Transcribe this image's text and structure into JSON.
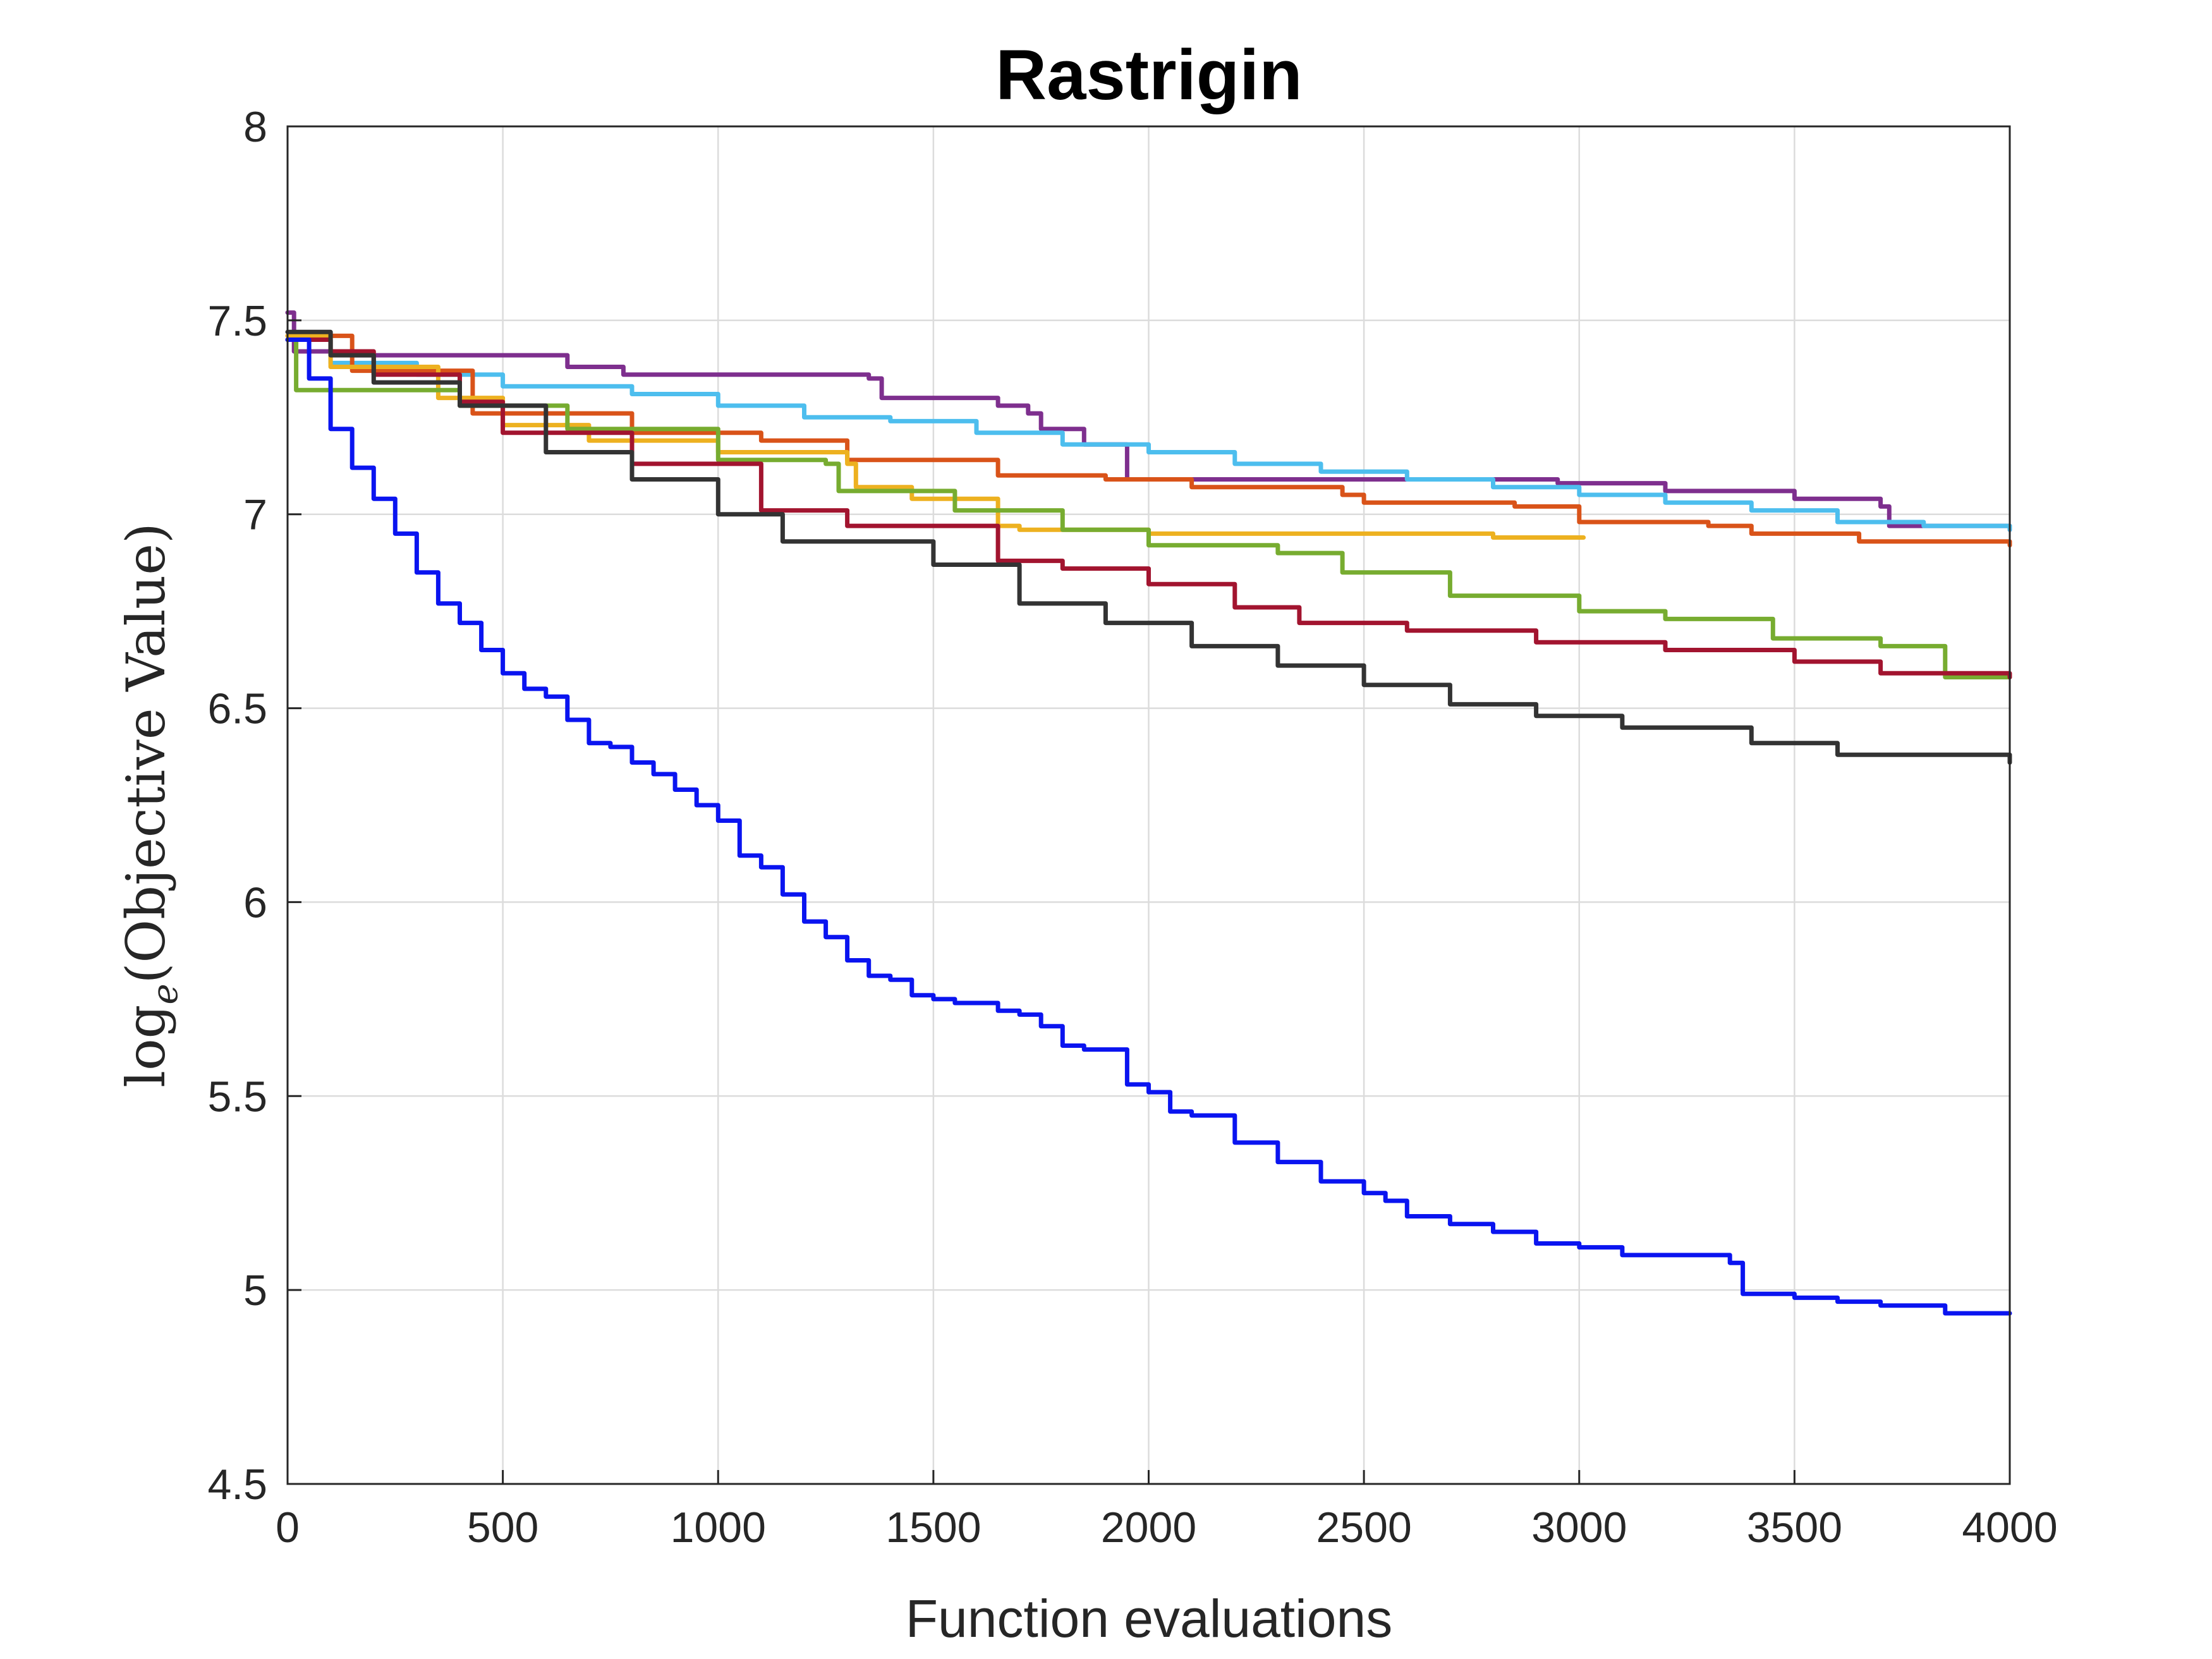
{
  "chart_data": {
    "type": "line",
    "title": "Rastrigin",
    "xlabel": "Function evaluations",
    "ylabel": {
      "prefix": "log",
      "subscript": "e",
      "text": "(Objective Value)"
    },
    "xlim": [
      0,
      4000
    ],
    "ylim": [
      4.5,
      8
    ],
    "xticks": [
      0,
      500,
      1000,
      1500,
      2000,
      2500,
      3000,
      3500,
      4000
    ],
    "yticks": [
      4.5,
      5,
      5.5,
      6,
      6.5,
      7,
      7.5,
      8
    ],
    "xtick_labels": [
      "0",
      "500",
      "1000",
      "1500",
      "2000",
      "2500",
      "3000",
      "3500",
      "4000"
    ],
    "ytick_labels": [
      "4.5",
      "5",
      "5.5",
      "6",
      "6.5",
      "7",
      "7.5",
      "8"
    ],
    "grid": true,
    "series": [
      {
        "color": "#7e2f8e",
        "x": [
          0,
          15,
          150,
          650,
          780,
          1350,
          1380,
          1650,
          1720,
          1750,
          1850,
          1950,
          2600,
          2950,
          3200,
          3500,
          3700,
          3720,
          4000
        ],
        "y": [
          7.52,
          7.42,
          7.41,
          7.38,
          7.36,
          7.35,
          7.3,
          7.28,
          7.26,
          7.22,
          7.18,
          7.09,
          7.09,
          7.08,
          7.06,
          7.04,
          7.02,
          6.97,
          6.96
        ]
      },
      {
        "color": "#4dbeee",
        "x": [
          0,
          100,
          300,
          500,
          800,
          1000,
          1200,
          1400,
          1600,
          1800,
          2000,
          2200,
          2400,
          2600,
          2800,
          3000,
          3200,
          3400,
          3600,
          3800,
          4000
        ],
        "y": [
          7.45,
          7.39,
          7.36,
          7.33,
          7.31,
          7.28,
          7.25,
          7.24,
          7.21,
          7.18,
          7.16,
          7.13,
          7.11,
          7.09,
          7.07,
          7.05,
          7.03,
          7.01,
          6.98,
          6.97,
          6.96
        ]
      },
      {
        "color": "#d95319",
        "x": [
          0,
          150,
          430,
          800,
          1100,
          1300,
          1650,
          1900,
          2100,
          2450,
          2500,
          2850,
          3000,
          3300,
          3400,
          3650,
          4000
        ],
        "y": [
          7.46,
          7.37,
          7.26,
          7.21,
          7.19,
          7.14,
          7.1,
          7.09,
          7.07,
          7.05,
          7.03,
          7.02,
          6.98,
          6.97,
          6.95,
          6.93,
          6.92
        ]
      },
      {
        "color": "#edb120",
        "x": [
          0,
          100,
          350,
          500,
          700,
          1000,
          1300,
          1320,
          1450,
          1650,
          1700,
          2000,
          2400,
          2800,
          3010
        ],
        "y": [
          7.46,
          7.38,
          7.3,
          7.23,
          7.19,
          7.16,
          7.13,
          7.07,
          7.04,
          6.97,
          6.96,
          6.95,
          6.95,
          6.94,
          6.94
        ]
      },
      {
        "color": "#77ac30",
        "x": [
          0,
          20,
          200,
          400,
          650,
          1000,
          1250,
          1280,
          1550,
          1800,
          2000,
          2300,
          2450,
          2700,
          3000,
          3200,
          3450,
          3700,
          3850,
          4000
        ],
        "y": [
          7.45,
          7.32,
          7.32,
          7.28,
          7.22,
          7.14,
          7.13,
          7.06,
          7.01,
          6.96,
          6.92,
          6.9,
          6.85,
          6.79,
          6.75,
          6.73,
          6.68,
          6.66,
          6.58,
          6.58
        ]
      },
      {
        "color": "#a2142f",
        "x": [
          0,
          100,
          200,
          400,
          500,
          800,
          1100,
          1300,
          1650,
          1800,
          2000,
          2200,
          2350,
          2600,
          2900,
          3200,
          3500,
          3700,
          4000
        ],
        "y": [
          7.45,
          7.42,
          7.36,
          7.29,
          7.21,
          7.13,
          7.01,
          6.97,
          6.88,
          6.86,
          6.82,
          6.76,
          6.72,
          6.7,
          6.67,
          6.65,
          6.62,
          6.59,
          6.58
        ]
      },
      {
        "color": "#333333",
        "x": [
          0,
          100,
          200,
          400,
          600,
          800,
          1000,
          1150,
          1500,
          1700,
          1900,
          2100,
          2300,
          2500,
          2700,
          2900,
          3100,
          3400,
          3600,
          4000
        ],
        "y": [
          7.47,
          7.41,
          7.34,
          7.28,
          7.16,
          7.09,
          7.0,
          6.93,
          6.87,
          6.77,
          6.72,
          6.66,
          6.61,
          6.56,
          6.51,
          6.48,
          6.45,
          6.41,
          6.38,
          6.36
        ]
      },
      {
        "color": "#0a14f0",
        "x": [
          0,
          50,
          100,
          150,
          200,
          250,
          300,
          350,
          400,
          450,
          500,
          550,
          600,
          650,
          700,
          750,
          800,
          850,
          900,
          950,
          1000,
          1050,
          1100,
          1150,
          1200,
          1250,
          1300,
          1350,
          1400,
          1450,
          1500,
          1550,
          1600,
          1650,
          1700,
          1750,
          1800,
          1850,
          1900,
          1950,
          2000,
          2050,
          2100,
          2200,
          2300,
          2400,
          2500,
          2550,
          2600,
          2700,
          2800,
          2900,
          3000,
          3100,
          3200,
          3300,
          3350,
          3380,
          3500,
          3600,
          3700,
          3800,
          3850,
          4000
        ],
        "y": [
          7.45,
          7.35,
          7.22,
          7.12,
          7.04,
          6.95,
          6.85,
          6.77,
          6.72,
          6.65,
          6.59,
          6.55,
          6.53,
          6.47,
          6.41,
          6.4,
          6.36,
          6.33,
          6.29,
          6.25,
          6.21,
          6.12,
          6.09,
          6.02,
          5.95,
          5.91,
          5.85,
          5.81,
          5.8,
          5.76,
          5.75,
          5.74,
          5.74,
          5.72,
          5.71,
          5.68,
          5.63,
          5.62,
          5.62,
          5.53,
          5.51,
          5.46,
          5.45,
          5.38,
          5.33,
          5.28,
          5.25,
          5.23,
          5.19,
          5.17,
          5.15,
          5.12,
          5.11,
          5.09,
          5.09,
          5.09,
          5.07,
          4.99,
          4.98,
          4.97,
          4.96,
          4.96,
          4.94,
          4.94
        ]
      }
    ]
  }
}
